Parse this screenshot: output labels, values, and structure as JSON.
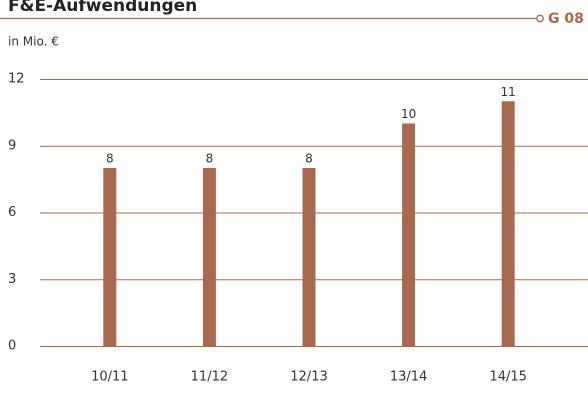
{
  "chart_data": {
    "type": "bar",
    "title": "F&E-Aufwendungen",
    "subtitle": "in Mio. €",
    "tag": "G 08",
    "categories": [
      "10/11",
      "11/12",
      "12/13",
      "13/14",
      "14/15"
    ],
    "values": [
      8,
      8,
      8,
      10,
      11
    ],
    "color": "#a8694f",
    "ylim": [
      0,
      12
    ],
    "yticks": [
      0,
      3,
      6,
      9,
      12
    ],
    "grid": true
  }
}
